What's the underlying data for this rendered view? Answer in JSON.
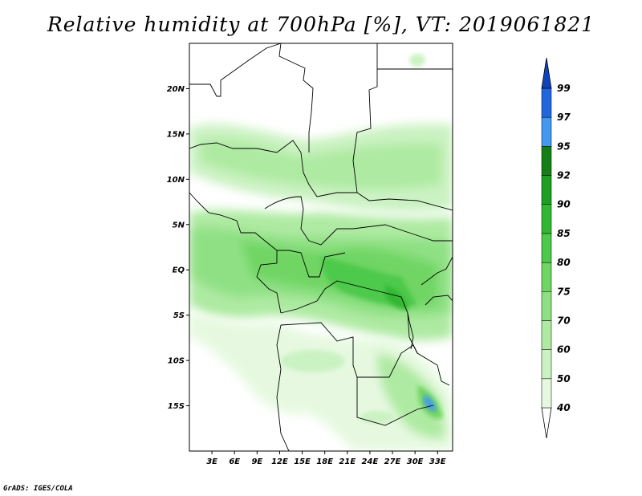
{
  "title": "Relative humidity at 700hPa [%], VT: 2019061821",
  "credit": "GrADS: IGES/COLA",
  "map": {
    "lon_range": [
      0,
      35
    ],
    "lat_range": [
      -20,
      25
    ],
    "lat_ticks": [
      {
        "value": 20,
        "label": "20N"
      },
      {
        "value": 15,
        "label": "15N"
      },
      {
        "value": 10,
        "label": "10N"
      },
      {
        "value": 5,
        "label": "5N"
      },
      {
        "value": 0,
        "label": "EQ"
      },
      {
        "value": -5,
        "label": "5S"
      },
      {
        "value": -10,
        "label": "10S"
      },
      {
        "value": -15,
        "label": "15S"
      }
    ],
    "lon_ticks": [
      {
        "value": 3,
        "label": "3E"
      },
      {
        "value": 6,
        "label": "6E"
      },
      {
        "value": 9,
        "label": "9E"
      },
      {
        "value": 12,
        "label": "12E"
      },
      {
        "value": 15,
        "label": "15E"
      },
      {
        "value": 18,
        "label": "18E"
      },
      {
        "value": 21,
        "label": "21E"
      },
      {
        "value": 24,
        "label": "24E"
      },
      {
        "value": 27,
        "label": "27E"
      },
      {
        "value": 30,
        "label": "30E"
      },
      {
        "value": 33,
        "label": "33E"
      }
    ]
  },
  "colorbar": {
    "levels": [
      "40",
      "50",
      "60",
      "70",
      "75",
      "80",
      "85",
      "90",
      "92",
      "95",
      "97",
      "99"
    ],
    "colors": [
      "#ffffff",
      "#e6f9e0",
      "#cbf2c2",
      "#aeeaa2",
      "#8fe084",
      "#6fd563",
      "#4dc94b",
      "#33b733",
      "#1f9e24",
      "#147f16",
      "#4499ee",
      "#2266dd",
      "#1144bb"
    ]
  },
  "colors": {
    "land": "#ffffff",
    "border": "#000000"
  }
}
